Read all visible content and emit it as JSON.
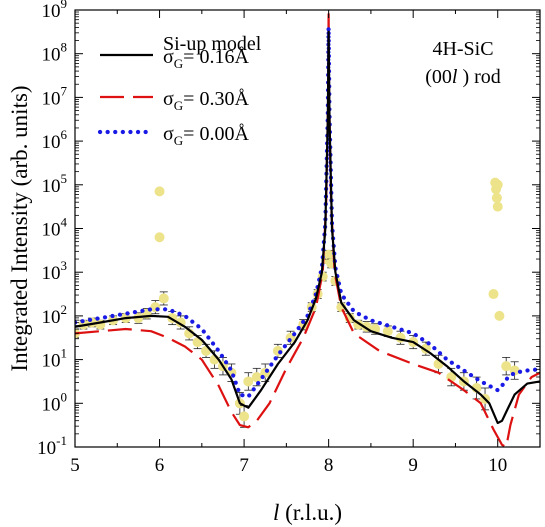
{
  "chart_data": {
    "type": "line",
    "xlabel_var": "l",
    "xlabel_unit": " (r.l.u.)",
    "ylabel": "Integrated Intensity (arb. units)",
    "xlim": [
      5,
      10.5
    ],
    "ylim_log10": [
      -1,
      9
    ],
    "y_scale": "log",
    "x_ticks": [
      5,
      6,
      7,
      8,
      9,
      10
    ],
    "y_tick_exponents": [
      -1,
      0,
      1,
      2,
      3,
      4,
      5,
      6,
      7,
      8,
      9
    ],
    "y_tick_base": "10",
    "annotations": {
      "line1": "4H-SiC",
      "line2_pre": "(00",
      "line2_var": "l",
      "line2_post": " ) rod"
    },
    "legend_position": "top-left",
    "series": [
      {
        "name_main": "Si-up model",
        "name_sigma": "σ",
        "name_sub": "G",
        "name_value": "= 0.16Å",
        "color": "#000000",
        "style": "solid",
        "x": [
          5.0,
          5.3,
          5.6,
          5.9,
          6.1,
          6.3,
          6.5,
          6.7,
          6.85,
          6.95,
          7.05,
          7.2,
          7.4,
          7.6,
          7.75,
          7.85,
          7.92,
          7.96,
          7.99,
          8.0,
          8.01,
          8.04,
          8.08,
          8.15,
          8.3,
          8.5,
          8.75,
          9.0,
          9.2,
          9.4,
          9.6,
          9.8,
          9.9,
          10.0,
          10.05,
          10.1,
          10.2,
          10.35,
          10.5
        ],
        "log10_y": [
          1.75,
          1.85,
          1.95,
          2.0,
          1.98,
          1.75,
          1.45,
          1.0,
          0.55,
          0.0,
          -0.1,
          0.3,
          0.9,
          1.4,
          1.9,
          2.4,
          3.0,
          4.0,
          6.5,
          8.5,
          6.5,
          4.0,
          3.0,
          2.3,
          1.9,
          1.65,
          1.5,
          1.4,
          1.15,
          0.85,
          0.5,
          0.2,
          0.0,
          -0.45,
          -0.4,
          -0.2,
          0.2,
          0.45,
          0.5
        ]
      },
      {
        "name_main": "",
        "name_sigma": "σ",
        "name_sub": "G",
        "name_value": "= 0.30Å",
        "color": "#dd1111",
        "style": "dashed",
        "x": [
          5.0,
          5.3,
          5.6,
          5.9,
          6.1,
          6.3,
          6.5,
          6.7,
          6.85,
          6.95,
          7.05,
          7.15,
          7.3,
          7.5,
          7.7,
          7.85,
          7.93,
          7.97,
          7.995,
          8.0,
          8.005,
          8.03,
          8.07,
          8.15,
          8.3,
          8.6,
          9.0,
          9.3,
          9.6,
          9.8,
          9.95,
          10.05,
          10.1,
          10.15,
          10.25,
          10.4,
          10.5
        ],
        "log10_y": [
          1.6,
          1.65,
          1.7,
          1.65,
          1.5,
          1.3,
          1.0,
          0.4,
          -0.2,
          -0.5,
          -0.55,
          -0.4,
          0.0,
          0.8,
          1.5,
          2.2,
          3.0,
          4.5,
          7.0,
          9.0,
          7.0,
          4.5,
          3.0,
          2.2,
          1.6,
          1.2,
          0.9,
          0.7,
          0.3,
          0.0,
          -0.6,
          -0.95,
          -1.0,
          -0.5,
          0.2,
          0.6,
          0.7
        ]
      },
      {
        "name_main": "",
        "name_sigma": "σ",
        "name_sub": "G",
        "name_value": "= 0.00Å",
        "color": "#1a1ae6",
        "style": "dotted",
        "x": [
          5.0,
          5.3,
          5.6,
          5.9,
          6.1,
          6.3,
          6.5,
          6.7,
          6.85,
          6.95,
          7.05,
          7.2,
          7.4,
          7.6,
          7.75,
          7.85,
          7.92,
          7.96,
          7.99,
          8.0,
          8.01,
          8.04,
          8.08,
          8.15,
          8.3,
          8.5,
          8.75,
          9.0,
          9.2,
          9.4,
          9.6,
          9.8,
          9.9,
          10.0,
          10.05,
          10.1,
          10.2,
          10.35,
          10.5
        ],
        "log10_y": [
          1.85,
          1.95,
          2.05,
          2.15,
          2.15,
          2.0,
          1.7,
          1.2,
          0.75,
          0.2,
          0.15,
          0.55,
          1.1,
          1.6,
          2.0,
          2.5,
          3.1,
          4.1,
          6.6,
          8.6,
          6.6,
          4.1,
          3.1,
          2.5,
          2.1,
          1.9,
          1.75,
          1.6,
          1.35,
          1.0,
          0.75,
          0.5,
          0.4,
          0.3,
          0.4,
          0.55,
          0.7,
          0.75,
          0.78
        ]
      }
    ],
    "measured": {
      "color": "#ede38a",
      "x": [
        5.0,
        5.1,
        5.2,
        5.3,
        5.45,
        5.6,
        5.75,
        5.85,
        5.95,
        6.0,
        6.0,
        6.05,
        6.15,
        6.25,
        6.35,
        6.45,
        6.55,
        6.65,
        6.75,
        6.85,
        6.95,
        7.0,
        7.05,
        7.15,
        7.25,
        7.4,
        7.55,
        7.7,
        7.8,
        7.87,
        7.93,
        7.97,
        8.0,
        8.03,
        8.08,
        8.15,
        8.25,
        8.35,
        8.45,
        8.55,
        8.7,
        8.85,
        9.0,
        9.15,
        9.3,
        9.45,
        9.6,
        9.75,
        9.85,
        9.95,
        9.97,
        9.98,
        9.99,
        10.0,
        10.0,
        10.02,
        10.1,
        10.2
      ],
      "log10_y": [
        1.6,
        1.8,
        1.85,
        1.8,
        1.9,
        1.95,
        1.95,
        2.05,
        2.2,
        4.85,
        3.8,
        2.4,
        1.95,
        1.85,
        1.6,
        1.4,
        1.2,
        1.0,
        0.85,
        0.7,
        0.0,
        -0.3,
        0.5,
        0.6,
        0.7,
        1.2,
        1.5,
        1.8,
        2.2,
        2.5,
        2.9,
        3.3,
        3.4,
        3.2,
        2.8,
        2.2,
        1.95,
        1.8,
        1.75,
        1.7,
        1.65,
        1.5,
        1.4,
        1.25,
        0.9,
        0.6,
        0.5,
        0.35,
        0.1,
        2.5,
        5.05,
        4.9,
        4.7,
        4.5,
        5.0,
        2.0,
        0.85,
        0.75
      ],
      "err_log10": [
        0.1,
        0.1,
        0.1,
        0.1,
        0.1,
        0.1,
        0.12,
        0.12,
        0.15,
        0.0,
        0.0,
        0.15,
        0.15,
        0.15,
        0.15,
        0.15,
        0.15,
        0.2,
        0.2,
        0.2,
        0.25,
        0.25,
        0.2,
        0.2,
        0.2,
        0.15,
        0.15,
        0.12,
        0.1,
        0.1,
        0.1,
        0.1,
        0.1,
        0.1,
        0.1,
        0.1,
        0.1,
        0.1,
        0.12,
        0.12,
        0.12,
        0.15,
        0.15,
        0.15,
        0.2,
        0.2,
        0.2,
        0.25,
        0.25,
        0.0,
        0.0,
        0.0,
        0.0,
        0.0,
        0.0,
        0.0,
        0.2,
        0.2
      ]
    }
  }
}
